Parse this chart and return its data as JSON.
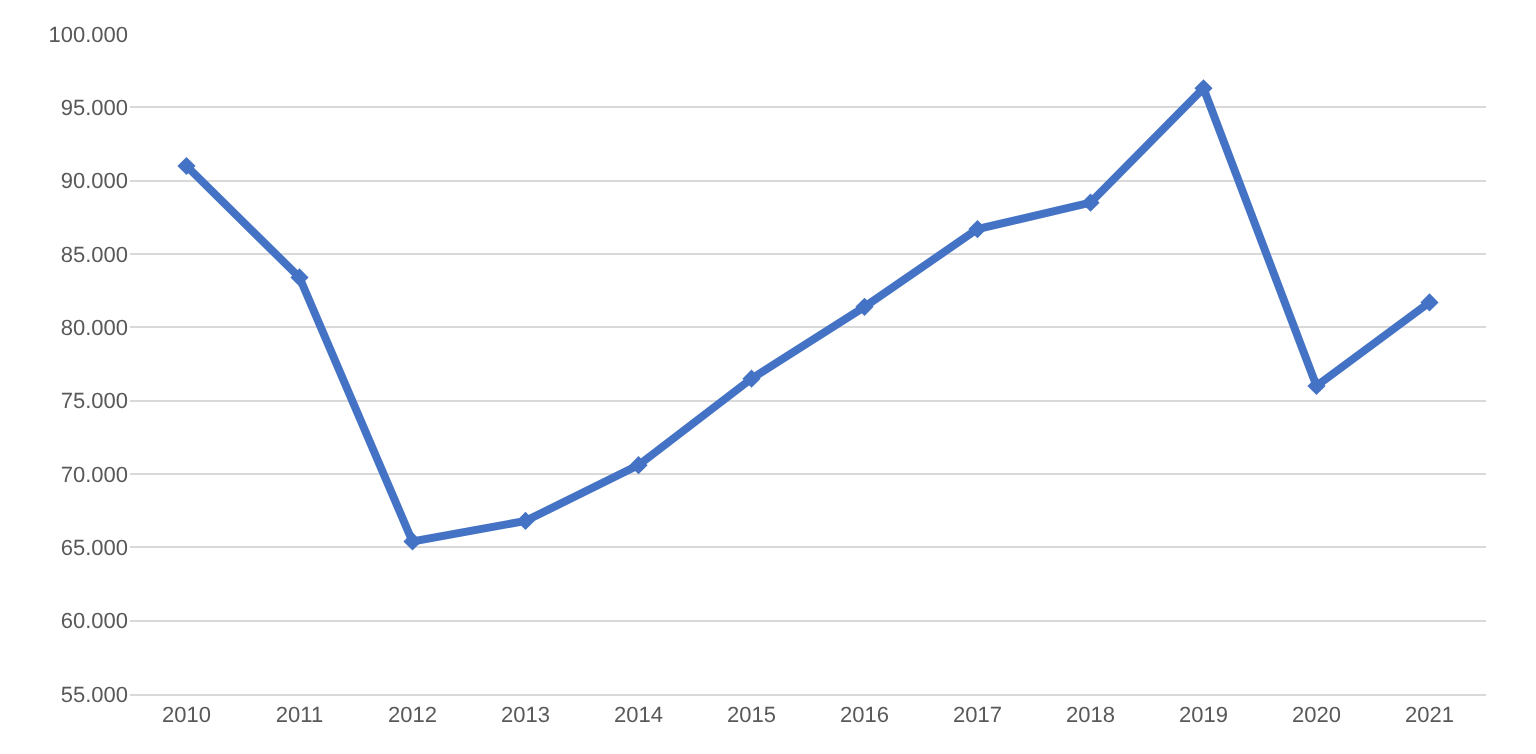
{
  "chart_data": {
    "type": "line",
    "categories": [
      "2010",
      "2011",
      "2012",
      "2013",
      "2014",
      "2015",
      "2016",
      "2017",
      "2018",
      "2019",
      "2020",
      "2021"
    ],
    "series": [
      {
        "color": "#4472c4",
        "values": [
          91000,
          83400,
          65400,
          66800,
          70600,
          76500,
          81400,
          86700,
          88500,
          96300,
          76000,
          81700
        ]
      }
    ],
    "ylim": [
      55000,
      100000
    ],
    "yticks": [
      {
        "value": 55000,
        "label": "55.000"
      },
      {
        "value": 60000,
        "label": "60.000"
      },
      {
        "value": 65000,
        "label": "65.000"
      },
      {
        "value": 70000,
        "label": "70.000"
      },
      {
        "value": 75000,
        "label": "75.000"
      },
      {
        "value": 80000,
        "label": "80.000"
      },
      {
        "value": 85000,
        "label": "85.000"
      },
      {
        "value": 90000,
        "label": "90.000"
      },
      {
        "value": 95000,
        "label": "95.000"
      },
      {
        "value": 100000,
        "label": "100.000"
      }
    ],
    "grid": "y",
    "marker": "diamond",
    "line_style": "solid"
  }
}
